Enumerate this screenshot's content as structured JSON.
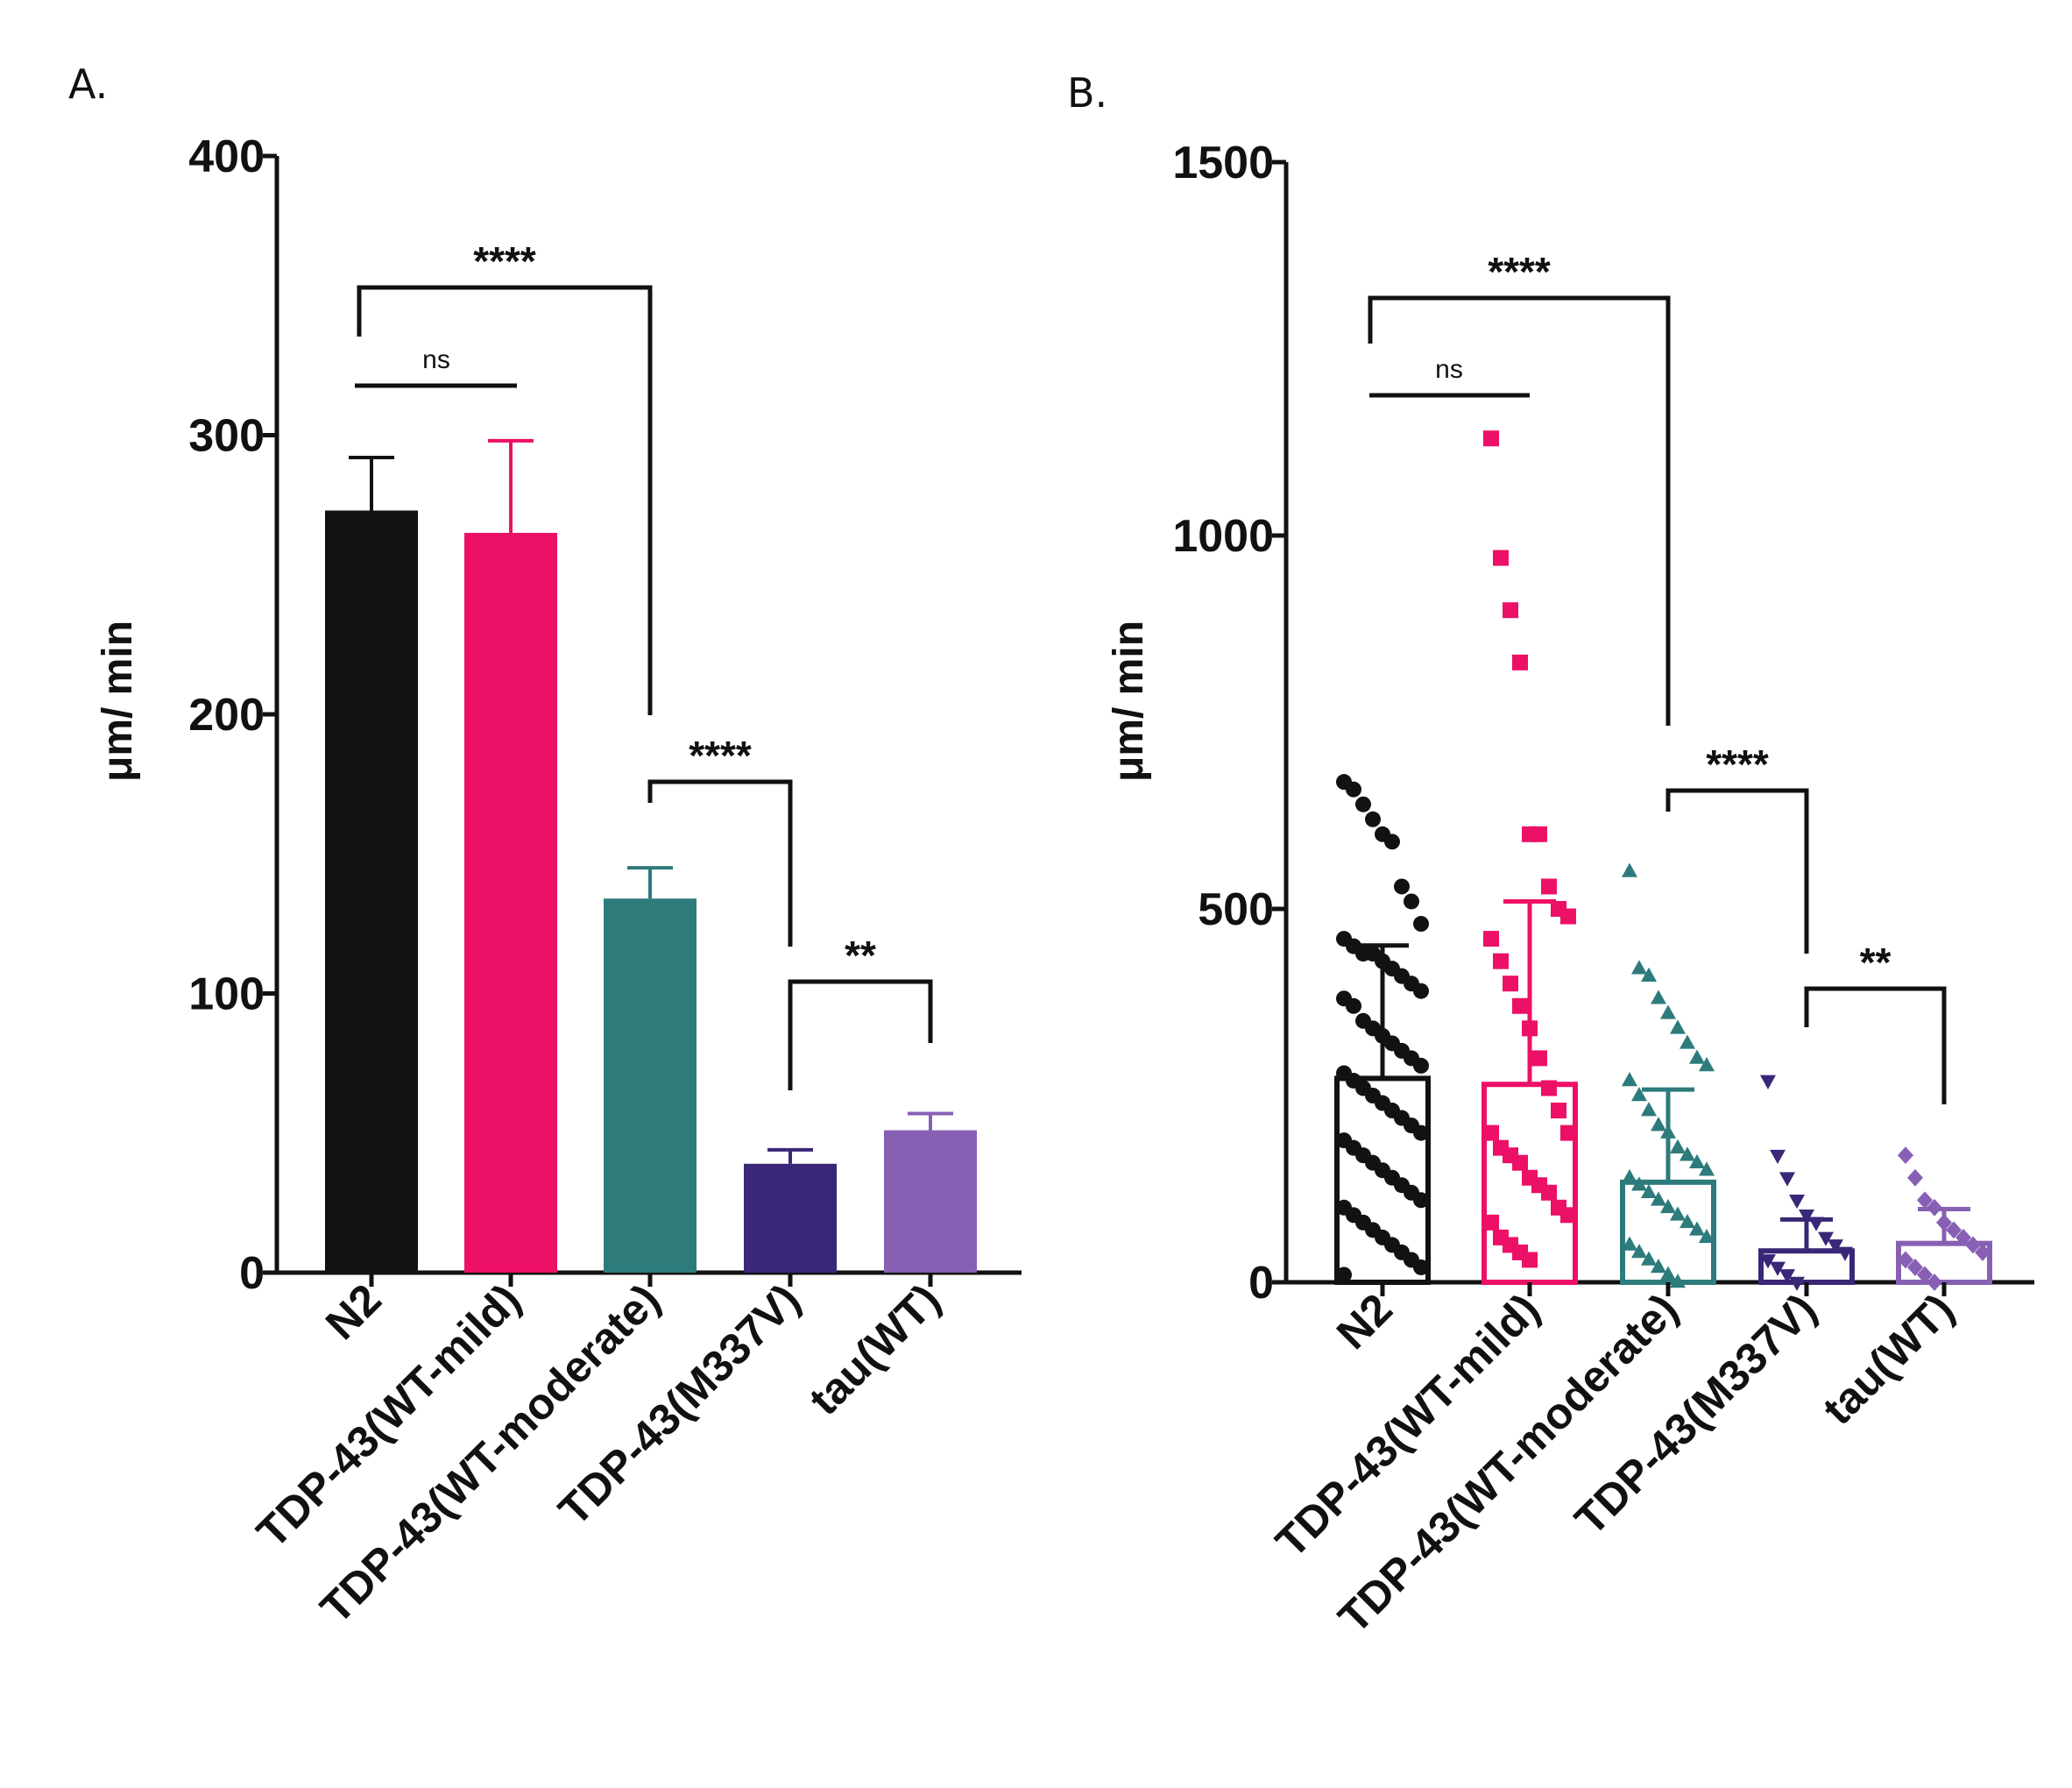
{
  "chart_data": [
    {
      "panel": "A.",
      "type": "bar",
      "ylabel": "μm/ min",
      "ylim": [
        0,
        400
      ],
      "yticks": [
        "0",
        "100",
        "200",
        "300",
        "400"
      ],
      "categories": [
        "N2",
        "TDP-43(WT-mild)",
        "TDP-43(WT-moderate)",
        "TDP-43(M337V)",
        "tau(WT)"
      ],
      "values": [
        273,
        265,
        134,
        39,
        51
      ],
      "errors": [
        19,
        33,
        11,
        5,
        6
      ],
      "colors": [
        "#121212",
        "#ec1066",
        "#2e7b7c",
        "#3a2777",
        "#8760b4"
      ],
      "significance": [
        {
          "from": 0,
          "to": 2,
          "label": "****"
        },
        {
          "from": 0,
          "to": 1,
          "label": "ns"
        },
        {
          "from": 2,
          "to": 3,
          "label": "****"
        },
        {
          "from": 3,
          "to": 4,
          "label": "**"
        }
      ]
    },
    {
      "panel": "B.",
      "type": "scatter",
      "ylabel": "μm/ min",
      "ylim": [
        0,
        1500
      ],
      "yticks": [
        "0",
        "500",
        "1000",
        "1500"
      ],
      "categories": [
        "N2",
        "TDP-43(WT-mild)",
        "TDP-43(WT-moderate)",
        "TDP-43(M337V)",
        "tau(WT)"
      ],
      "means": [
        273,
        265,
        134,
        42,
        52
      ],
      "sd": [
        178,
        245,
        124,
        42,
        46
      ],
      "colors": [
        "#121212",
        "#ec1066",
        "#2e7b7c",
        "#3a2777",
        "#8760b4"
      ],
      "markers": [
        "circle",
        "square",
        "triangle-up",
        "triangle-down",
        "diamond"
      ],
      "points": [
        [
          670,
          660,
          640,
          620,
          600,
          590,
          530,
          510,
          480,
          460,
          450,
          440,
          440,
          430,
          420,
          410,
          400,
          390,
          380,
          370,
          350,
          340,
          330,
          320,
          310,
          300,
          290,
          280,
          270,
          260,
          250,
          240,
          230,
          220,
          210,
          200,
          190,
          180,
          170,
          160,
          150,
          140,
          130,
          120,
          110,
          100,
          90,
          80,
          70,
          60,
          50,
          40,
          30,
          20,
          10
        ],
        [
          1130,
          970,
          900,
          830,
          600,
          600,
          530,
          500,
          490,
          460,
          430,
          400,
          370,
          340,
          300,
          260,
          230,
          200,
          200,
          180,
          170,
          160,
          140,
          130,
          120,
          100,
          90,
          80,
          60,
          50,
          40,
          30
        ],
        [
          550,
          420,
          410,
          380,
          360,
          340,
          320,
          300,
          290,
          270,
          250,
          230,
          210,
          200,
          180,
          170,
          160,
          150,
          140,
          130,
          120,
          110,
          100,
          90,
          80,
          70,
          60,
          50,
          40,
          30,
          20,
          10,
          0
        ],
        [
          270,
          170,
          140,
          110,
          90,
          80,
          60,
          50,
          40,
          30,
          20,
          10,
          0
        ],
        [
          170,
          140,
          110,
          100,
          80,
          70,
          60,
          50,
          40,
          30,
          20,
          10,
          0
        ]
      ],
      "significance": [
        {
          "from": 0,
          "to": 2,
          "label": "****"
        },
        {
          "from": 0,
          "to": 1,
          "label": "ns"
        },
        {
          "from": 2,
          "to": 3,
          "label": "****"
        },
        {
          "from": 3,
          "to": 4,
          "label": "**"
        }
      ]
    }
  ]
}
